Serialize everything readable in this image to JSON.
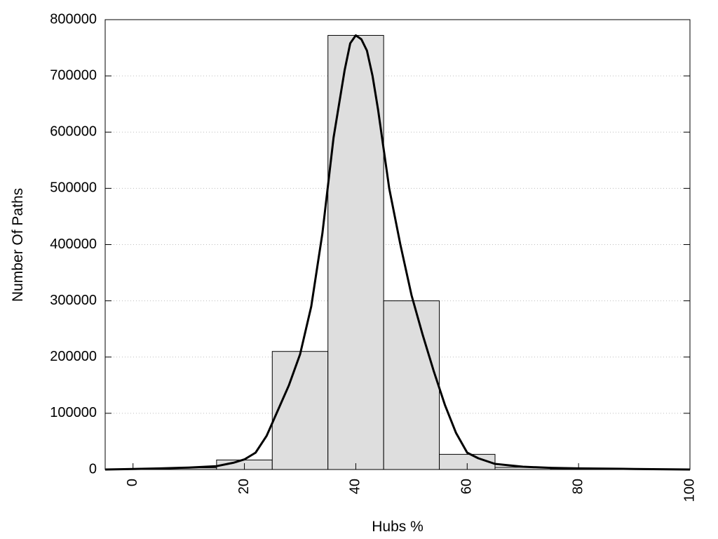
{
  "chart_data": {
    "type": "bar",
    "title": "",
    "xlabel": "Hubs %",
    "ylabel": "Number Of Paths",
    "xlim": [
      -5,
      100
    ],
    "ylim": [
      0,
      800000
    ],
    "x_ticks": [
      0,
      20,
      40,
      60,
      80,
      100
    ],
    "y_ticks": [
      0,
      100000,
      200000,
      300000,
      400000,
      500000,
      600000,
      700000,
      800000
    ],
    "grid": "horizontal dotted",
    "legend": "none",
    "bar_fill": "#dedede",
    "bar_stroke": "#000000",
    "line_color": "#000000",
    "bins": [
      {
        "x0": -5,
        "x1": 5,
        "value": 1000
      },
      {
        "x0": 5,
        "x1": 15,
        "value": 3000
      },
      {
        "x0": 15,
        "x1": 25,
        "value": 17000
      },
      {
        "x0": 25,
        "x1": 35,
        "value": 210000
      },
      {
        "x0": 35,
        "x1": 45,
        "value": 772000
      },
      {
        "x0": 45,
        "x1": 55,
        "value": 300000
      },
      {
        "x0": 55,
        "x1": 65,
        "value": 27000
      },
      {
        "x0": 65,
        "x1": 75,
        "value": 4000
      },
      {
        "x0": 75,
        "x1": 85,
        "value": 1500
      },
      {
        "x0": 85,
        "x1": 95,
        "value": 500
      }
    ],
    "series": [
      {
        "type": "line",
        "x": [
          -5,
          0,
          5,
          10,
          15,
          18,
          20,
          22,
          24,
          26,
          28,
          30,
          32,
          34,
          36,
          38,
          39,
          40,
          41,
          42,
          43,
          44,
          46,
          48,
          50,
          52,
          54,
          56,
          58,
          60,
          62,
          65,
          70,
          75,
          80,
          85,
          90,
          95,
          100
        ],
        "y": [
          0,
          1000,
          2000,
          3500,
          6000,
          12000,
          18000,
          30000,
          60000,
          105000,
          150000,
          205000,
          290000,
          420000,
          590000,
          710000,
          758000,
          772000,
          765000,
          745000,
          700000,
          640000,
          500000,
          400000,
          310000,
          240000,
          175000,
          115000,
          65000,
          30000,
          20000,
          10000,
          5000,
          3000,
          2000,
          1500,
          1000,
          500,
          0
        ]
      }
    ]
  }
}
